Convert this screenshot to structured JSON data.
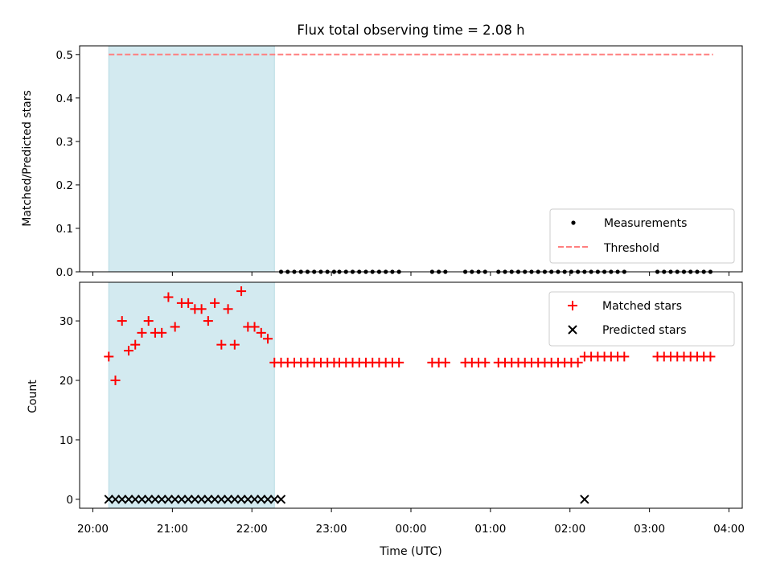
{
  "chart_data": [
    {
      "type": "scatter",
      "title": "Flux total observing time = 2.08 h",
      "ylabel": "Matched/Predicted stars",
      "ylim": [
        0,
        0.52
      ],
      "yticks": [
        "0.0",
        "0.1",
        "0.2",
        "0.3",
        "0.4",
        "0.5"
      ],
      "shaded_region": {
        "from": "20:12",
        "to": "22:17",
        "color": "#d3eaf0"
      },
      "threshold": {
        "name": "Threshold",
        "value": 0.5,
        "from": "20:12",
        "to": "03:48",
        "color": "#ff7f7f",
        "style": "dashed"
      },
      "series": [
        {
          "name": "Measurements",
          "marker": "dot",
          "color": "#000000",
          "x": [
            "22:22",
            "22:27",
            "22:32",
            "22:37",
            "22:42",
            "22:47",
            "22:52",
            "22:57",
            "23:02",
            "23:06",
            "23:11",
            "23:16",
            "23:21",
            "23:26",
            "23:31",
            "23:36",
            "23:41",
            "23:46",
            "23:51",
            "00:16",
            "00:21",
            "00:26",
            "00:41",
            "00:46",
            "00:51",
            "00:56",
            "01:06",
            "01:11",
            "01:16",
            "01:21",
            "01:26",
            "01:31",
            "01:36",
            "01:41",
            "01:46",
            "01:51",
            "01:56",
            "02:01",
            "02:06",
            "02:11",
            "02:16",
            "02:21",
            "02:26",
            "02:31",
            "02:36",
            "02:41",
            "03:06",
            "03:11",
            "03:16",
            "03:21",
            "03:26",
            "03:31",
            "03:36",
            "03:41",
            "03:46"
          ],
          "y": [
            0,
            0,
            0,
            0,
            0,
            0,
            0,
            0,
            0,
            0,
            0,
            0,
            0,
            0,
            0,
            0,
            0,
            0,
            0,
            0,
            0,
            0,
            0,
            0,
            0,
            0,
            0,
            0,
            0,
            0,
            0,
            0,
            0,
            0,
            0,
            0,
            0,
            0,
            0,
            0,
            0,
            0,
            0,
            0,
            0,
            0,
            0,
            0,
            0,
            0,
            0,
            0,
            0,
            0,
            0
          ]
        }
      ],
      "legend": {
        "position": "lower right",
        "entries": [
          "Measurements",
          "Threshold"
        ]
      }
    },
    {
      "type": "scatter",
      "xlabel": "Time (UTC)",
      "ylabel": "Count",
      "ylim": [
        -1.5,
        36.5
      ],
      "yticks": [
        "0",
        "10",
        "20",
        "30"
      ],
      "xticks": [
        "20:00",
        "21:00",
        "22:00",
        "23:00",
        "00:00",
        "01:00",
        "02:00",
        "03:00",
        "04:00"
      ],
      "xlim": [
        "19:50",
        "04:10"
      ],
      "shaded_region": {
        "from": "20:12",
        "to": "22:17",
        "color": "#d3eaf0"
      },
      "series": [
        {
          "name": "Matched stars",
          "marker": "plus",
          "color": "#ff0000",
          "x": [
            "20:12",
            "20:17",
            "20:22",
            "20:27",
            "20:32",
            "20:37",
            "20:42",
            "20:47",
            "20:52",
            "20:57",
            "21:02",
            "21:07",
            "21:12",
            "21:17",
            "21:22",
            "21:27",
            "21:32",
            "21:37",
            "21:42",
            "21:47",
            "21:52",
            "21:57",
            "22:02",
            "22:07",
            "22:12",
            "22:17",
            "22:22",
            "22:27",
            "22:32",
            "22:37",
            "22:42",
            "22:47",
            "22:52",
            "22:57",
            "23:02",
            "23:06",
            "23:11",
            "23:16",
            "23:21",
            "23:26",
            "23:31",
            "23:36",
            "23:41",
            "23:46",
            "23:51",
            "00:16",
            "00:21",
            "00:26",
            "00:41",
            "00:46",
            "00:51",
            "00:56",
            "01:06",
            "01:11",
            "01:16",
            "01:21",
            "01:26",
            "01:31",
            "01:36",
            "01:41",
            "01:46",
            "01:51",
            "01:56",
            "02:01",
            "02:06",
            "02:11",
            "02:16",
            "02:21",
            "02:26",
            "02:31",
            "02:36",
            "02:41",
            "03:06",
            "03:11",
            "03:16",
            "03:21",
            "03:26",
            "03:31",
            "03:36",
            "03:41",
            "03:46"
          ],
          "y": [
            24,
            20,
            30,
            25,
            26,
            28,
            30,
            28,
            28,
            34,
            29,
            33,
            33,
            32,
            32,
            30,
            33,
            26,
            32,
            26,
            35,
            29,
            29,
            28,
            27,
            23,
            23,
            23,
            23,
            23,
            23,
            23,
            23,
            23,
            23,
            23,
            23,
            23,
            23,
            23,
            23,
            23,
            23,
            23,
            23,
            23,
            23,
            23,
            23,
            23,
            23,
            23,
            23,
            23,
            23,
            23,
            23,
            23,
            23,
            23,
            23,
            23,
            23,
            23,
            23,
            24,
            24,
            24,
            24,
            24,
            24,
            24,
            24,
            24,
            24,
            24,
            24,
            24,
            24,
            24,
            24
          ]
        },
        {
          "name": "Predicted stars",
          "marker": "x",
          "color": "#000000",
          "x": [
            "20:12",
            "20:17",
            "20:22",
            "20:27",
            "20:32",
            "20:37",
            "20:42",
            "20:47",
            "20:52",
            "20:57",
            "21:02",
            "21:07",
            "21:12",
            "21:17",
            "21:22",
            "21:27",
            "21:32",
            "21:37",
            "21:42",
            "21:47",
            "21:52",
            "21:57",
            "22:02",
            "22:07",
            "22:12",
            "22:17",
            "22:22",
            "02:11"
          ],
          "y": [
            0,
            0,
            0,
            0,
            0,
            0,
            0,
            0,
            0,
            0,
            0,
            0,
            0,
            0,
            0,
            0,
            0,
            0,
            0,
            0,
            0,
            0,
            0,
            0,
            0,
            0,
            0,
            0
          ]
        }
      ],
      "legend": {
        "position": "upper right",
        "entries": [
          "Matched stars",
          "Predicted stars"
        ]
      }
    }
  ]
}
